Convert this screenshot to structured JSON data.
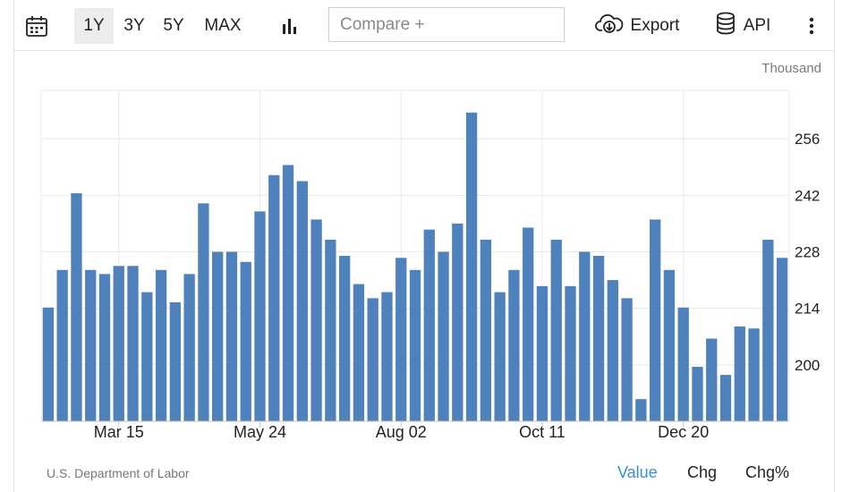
{
  "toolbar": {
    "ranges": [
      "1Y",
      "3Y",
      "5Y",
      "MAX"
    ],
    "selected_range": "1Y",
    "compare_placeholder": "Compare +",
    "export_label": "Export",
    "api_label": "API",
    "icons": {
      "calendar": "calendar-icon",
      "chart_type": "bar-chart-icon",
      "export": "cloud-download-icon",
      "api": "database-icon",
      "more": "more-vertical-icon"
    }
  },
  "source": "U.S. Department of Labor",
  "modes": [
    "Value",
    "Chg",
    "Chg%"
  ],
  "active_mode": "Value",
  "colors": {
    "bar": "#4f81bd",
    "accent": "#3a8ed8",
    "grid": "#e8e8e8"
  },
  "chart_data": {
    "type": "bar",
    "unit": "Thousand",
    "y_ticks": [
      200,
      214,
      228,
      242,
      256
    ],
    "ylim": [
      186,
      268
    ],
    "x_tick_labels": [
      "Mar 15",
      "May 24",
      "Aug 02",
      "Oct 11",
      "Dec 20"
    ],
    "x_tick_bar_index": [
      5,
      15,
      25,
      35,
      45
    ],
    "grid": true,
    "values": [
      214.2,
      223.5,
      242.5,
      223.5,
      222.5,
      224.5,
      224.5,
      218.0,
      223.5,
      215.5,
      222.5,
      240.0,
      228.0,
      228.0,
      225.5,
      238.0,
      247.0,
      249.5,
      245.5,
      236.0,
      231.0,
      227.0,
      220.0,
      216.5,
      218.0,
      226.5,
      223.5,
      233.5,
      228.0,
      235.0,
      262.5,
      231.0,
      218.0,
      223.5,
      234.0,
      219.5,
      231.0,
      219.5,
      228.0,
      227.0,
      221.0,
      216.5,
      191.5,
      236.0,
      223.5,
      214.2,
      199.5,
      206.5,
      197.5,
      209.5,
      209.0,
      231.0,
      226.5
    ]
  }
}
